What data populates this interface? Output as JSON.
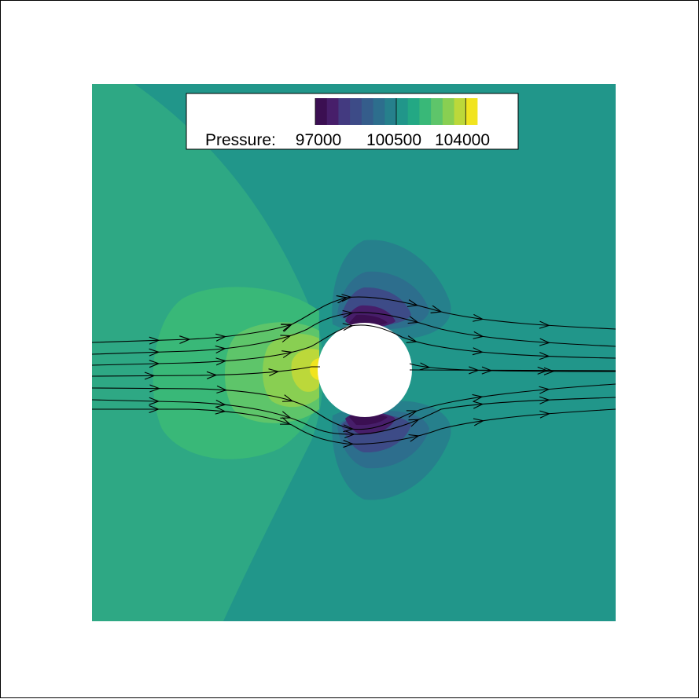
{
  "chart_data": {
    "type": "heatmap",
    "title": "",
    "xlabel": "",
    "ylabel": "",
    "field": "pressure",
    "obstacle": "circle",
    "streamlines": true,
    "legend": {
      "label": "Pressure:",
      "placement": "top",
      "tick_labels": [
        "97000",
        "100500",
        "104000"
      ],
      "range": [
        96000,
        105000
      ],
      "levels": 14,
      "colors": [
        "#3b0f52",
        "#471e6a",
        "#433a80",
        "#3d4b87",
        "#355d8b",
        "#2d6e8d",
        "#26808c",
        "#21968a",
        "#23a884",
        "#39b878",
        "#5ec56a",
        "#89cf52",
        "#bcd83a",
        "#f1e41f"
      ]
    },
    "colors": {
      "freestream": "#21968a",
      "upstream_mid": "#2ea884",
      "upstream_high": "#3db878",
      "stagnation_peak": "#f1e41f",
      "low_pressure": "#3b0f52"
    }
  }
}
